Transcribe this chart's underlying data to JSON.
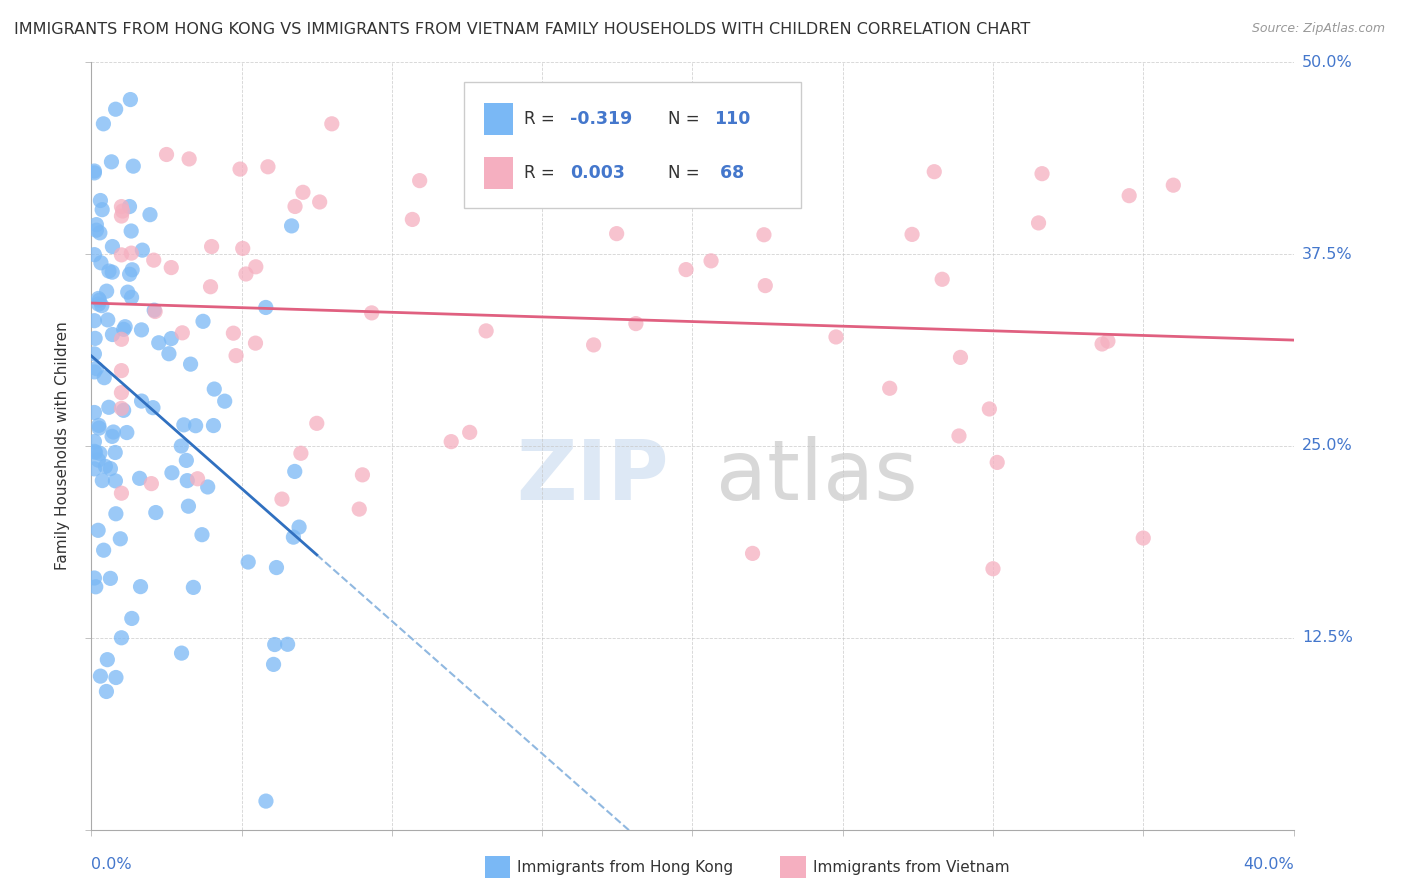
{
  "title": "IMMIGRANTS FROM HONG KONG VS IMMIGRANTS FROM VIETNAM FAMILY HOUSEHOLDS WITH CHILDREN CORRELATION CHART",
  "source": "Source: ZipAtlas.com",
  "ylabel_label": "Family Households with Children",
  "hk_color": "#7ab8f5",
  "vn_color": "#f5afc0",
  "hk_trend_color": "#3070c0",
  "vn_trend_color": "#e06080",
  "dashed_color": "#90b8e0",
  "background_color": "#ffffff",
  "grid_color": "#c8c8c8",
  "text_color": "#4477cc",
  "title_color": "#333333",
  "source_color": "#999999",
  "xlim": [
    0.0,
    0.4
  ],
  "ylim": [
    0.0,
    0.5
  ],
  "ytick_vals": [
    0.0,
    0.125,
    0.25,
    0.375,
    0.5
  ],
  "ytick_labels": [
    "",
    "12.5%",
    "25.0%",
    "37.5%",
    "50.0%"
  ],
  "r_hk": "-0.319",
  "n_hk": "110",
  "r_vn": "0.003",
  "n_vn": "68",
  "legend_bottom": [
    "Immigrants from Hong Kong",
    "Immigrants from Vietnam"
  ]
}
